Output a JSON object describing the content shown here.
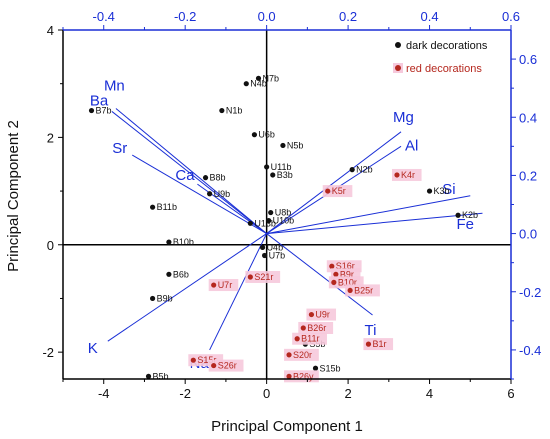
{
  "chart_data": {
    "type": "scatter",
    "title": "",
    "xlabel": "Principal Component 1",
    "ylabel": "Principal Component 2",
    "xlim": [
      -5,
      6
    ],
    "ylim": [
      -2.5,
      4
    ],
    "xticks": [
      -4,
      -2,
      0,
      2,
      4,
      6
    ],
    "yticks": [
      -2,
      0,
      2,
      4
    ],
    "x2lim": [
      -0.5,
      0.6
    ],
    "y2lim": [
      -0.5,
      0.7
    ],
    "x2ticks": [
      "-0.4",
      "-0.2",
      "0.0",
      "0.2",
      "0.4",
      "0.6"
    ],
    "y2ticks": [
      "-0.4",
      "-0.2",
      "0.0",
      "0.2",
      "0.4",
      "0.6"
    ],
    "colors": {
      "dark": "#111111",
      "red": "#b5281f",
      "loading": "#1a2fd6",
      "highlight": "#f6c9dc"
    },
    "legend": {
      "position": "top-right",
      "items": [
        {
          "key": "dark",
          "label": "dark decorations"
        },
        {
          "key": "red",
          "label": "red decorations"
        }
      ]
    },
    "series": [
      {
        "name": "dark decorations",
        "points": [
          {
            "label": "N7b",
            "x": -0.2,
            "y": 3.1
          },
          {
            "label": "N4b",
            "x": -0.5,
            "y": 3.0
          },
          {
            "label": "B7b",
            "x": -4.3,
            "y": 2.5
          },
          {
            "label": "N1b",
            "x": -1.1,
            "y": 2.5
          },
          {
            "label": "U6b",
            "x": -0.3,
            "y": 2.05
          },
          {
            "label": "N5b",
            "x": 0.4,
            "y": 1.85
          },
          {
            "label": "U11b",
            "x": 0.0,
            "y": 1.45
          },
          {
            "label": "B3b",
            "x": 0.15,
            "y": 1.3
          },
          {
            "label": "N2b",
            "x": 2.1,
            "y": 1.4
          },
          {
            "label": "B8b",
            "x": -1.5,
            "y": 1.25
          },
          {
            "label": "U9b",
            "x": -1.4,
            "y": 0.95
          },
          {
            "label": "K3b",
            "x": 4.0,
            "y": 1.0
          },
          {
            "label": "K2b",
            "x": 4.7,
            "y": 0.55
          },
          {
            "label": "B11b",
            "x": -2.8,
            "y": 0.7
          },
          {
            "label": "U8b",
            "x": 0.1,
            "y": 0.6
          },
          {
            "label": "U10b",
            "x": 0.05,
            "y": 0.45
          },
          {
            "label": "U13b",
            "x": -0.4,
            "y": 0.4
          },
          {
            "label": "B10b",
            "x": -2.4,
            "y": 0.05
          },
          {
            "label": "U4b",
            "x": -0.1,
            "y": -0.05
          },
          {
            "label": "U7b",
            "x": -0.05,
            "y": -0.2
          },
          {
            "label": "B6b",
            "x": -2.4,
            "y": -0.55
          },
          {
            "label": "B9b",
            "x": -2.8,
            "y": -1.0
          },
          {
            "label": "S5b",
            "x": 0.95,
            "y": -1.85
          },
          {
            "label": "S15b",
            "x": 1.2,
            "y": -2.3
          },
          {
            "label": "B5b",
            "x": -2.9,
            "y": -2.45
          }
        ]
      },
      {
        "name": "red decorations",
        "points": [
          {
            "label": "K4r",
            "x": 3.2,
            "y": 1.3
          },
          {
            "label": "K5r",
            "x": 1.5,
            "y": 1.0
          },
          {
            "label": "S16r",
            "x": 1.6,
            "y": -0.4
          },
          {
            "label": "B9r",
            "x": 1.7,
            "y": -0.55
          },
          {
            "label": "B10r",
            "x": 1.65,
            "y": -0.7
          },
          {
            "label": "B25r",
            "x": 2.05,
            "y": -0.85
          },
          {
            "label": "S21r",
            "x": -0.4,
            "y": -0.6
          },
          {
            "label": "U7r",
            "x": -1.3,
            "y": -0.75
          },
          {
            "label": "U9r",
            "x": 1.1,
            "y": -1.3
          },
          {
            "label": "B26r",
            "x": 0.9,
            "y": -1.55
          },
          {
            "label": "B11r",
            "x": 0.75,
            "y": -1.75
          },
          {
            "label": "B1r",
            "x": 2.5,
            "y": -1.85
          },
          {
            "label": "S20r",
            "x": 0.55,
            "y": -2.05
          },
          {
            "label": "S15r",
            "x": -1.8,
            "y": -2.15
          },
          {
            "label": "S26r",
            "x": -1.3,
            "y": -2.25
          },
          {
            "label": "B26y",
            "x": 0.55,
            "y": -2.45
          }
        ]
      }
    ],
    "loadings": [
      {
        "label": "Ba",
        "x2": -0.38,
        "y2": 0.42
      },
      {
        "label": "Mn",
        "x2": -0.37,
        "y2": 0.43
      },
      {
        "label": "Sr",
        "x2": -0.33,
        "y2": 0.27
      },
      {
        "label": "Ca",
        "x2": -0.17,
        "y2": 0.17
      },
      {
        "label": "Mg",
        "x2": 0.33,
        "y2": 0.35
      },
      {
        "label": "Al",
        "x2": 0.33,
        "y2": 0.3
      },
      {
        "label": "Si",
        "x2": 0.5,
        "y2": 0.13
      },
      {
        "label": "Fe",
        "x2": 0.53,
        "y2": 0.07
      },
      {
        "label": "Ti",
        "x2": 0.26,
        "y2": -0.28
      },
      {
        "label": "K",
        "x2": -0.39,
        "y2": -0.37
      },
      {
        "label": "Na",
        "x2": -0.14,
        "y2": -0.4
      }
    ]
  }
}
